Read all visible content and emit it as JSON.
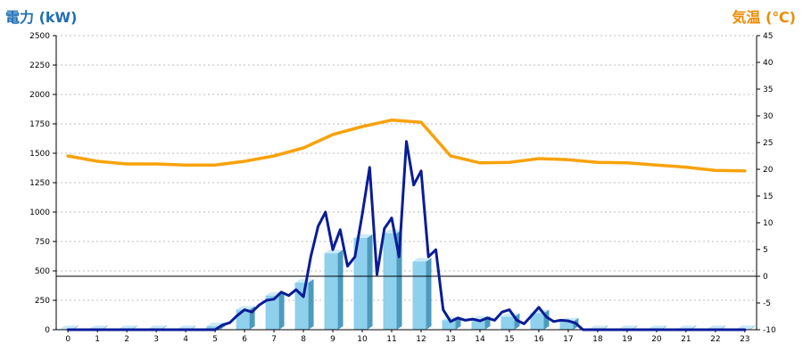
{
  "chart_data": {
    "type": "bar+line",
    "y_left_label": "電力 (kW)",
    "y_right_label": "気温 (℃)",
    "y_left_range": [
      0,
      2500
    ],
    "y_left_ticks": [
      0,
      250,
      500,
      750,
      1000,
      1250,
      1500,
      1750,
      2000,
      2250,
      2500
    ],
    "y_right_range": [
      -10,
      45
    ],
    "y_right_ticks": [
      -10,
      -5,
      0,
      5,
      10,
      15,
      20,
      25,
      30,
      35,
      40,
      45
    ],
    "x_range": [
      -0.4,
      23.4
    ],
    "x_ticks": [
      0,
      1,
      2,
      3,
      4,
      5,
      6,
      7,
      8,
      9,
      10,
      11,
      12,
      13,
      14,
      15,
      16,
      17,
      18,
      19,
      20,
      21,
      22,
      23
    ],
    "grid": true,
    "colors": {
      "left_axis_title": "#1f6fb5",
      "right_axis_title": "#f08a00",
      "bar_front": "#8fd0ec",
      "bar_side": "#4c9bbf",
      "bar_top": "#cbeaf8",
      "power_line": "#0a1c96",
      "temperature_line": "#f8a20a",
      "grid": "#bdbdbd"
    },
    "bars": {
      "categories": [
        0,
        1,
        2,
        3,
        4,
        5,
        6,
        7,
        8,
        9,
        10,
        11,
        12,
        13,
        14,
        15,
        16,
        17,
        18,
        19,
        20,
        21,
        22,
        23
      ],
      "values": [
        5,
        5,
        5,
        5,
        5,
        30,
        170,
        290,
        400,
        650,
        780,
        820,
        580,
        80,
        85,
        110,
        140,
        70,
        5,
        5,
        5,
        5,
        5,
        5
      ]
    },
    "temperature": {
      "x": [
        0,
        1,
        2,
        3,
        4,
        5,
        6,
        7,
        8,
        9,
        10,
        11,
        11.5,
        12,
        13,
        14,
        15,
        16,
        17,
        18,
        19,
        20,
        21,
        22,
        23
      ],
      "y": [
        22.5,
        21.5,
        21,
        21,
        20.8,
        20.8,
        21.5,
        22.5,
        24,
        26.5,
        28,
        29.2,
        29,
        28.8,
        22.5,
        21.2,
        21.3,
        22,
        21.8,
        21.3,
        21.2,
        20.8,
        20.4,
        19.8,
        19.7
      ]
    },
    "power": {
      "x": [
        0,
        1,
        2,
        3,
        4,
        5,
        5.25,
        5.5,
        5.75,
        6,
        6.25,
        6.5,
        6.75,
        7,
        7.25,
        7.5,
        7.75,
        8,
        8.25,
        8.5,
        8.75,
        9,
        9.25,
        9.5,
        9.75,
        10,
        10.25,
        10.5,
        10.75,
        11,
        11.25,
        11.5,
        11.75,
        12,
        12.25,
        12.5,
        12.75,
        13,
        13.25,
        13.5,
        13.75,
        14,
        14.25,
        14.5,
        14.75,
        15,
        15.25,
        15.5,
        15.75,
        16,
        16.25,
        16.5,
        16.75,
        17,
        17.25,
        17.5,
        18,
        19,
        20,
        21,
        22,
        23
      ],
      "y": [
        0,
        0,
        0,
        0,
        0,
        0,
        40,
        60,
        120,
        170,
        150,
        210,
        250,
        260,
        320,
        290,
        340,
        280,
        620,
        880,
        1000,
        680,
        850,
        540,
        620,
        980,
        1380,
        470,
        860,
        950,
        620,
        1600,
        1230,
        1350,
        620,
        680,
        170,
        70,
        100,
        80,
        90,
        75,
        100,
        80,
        150,
        170,
        80,
        50,
        120,
        190,
        110,
        70,
        80,
        75,
        55,
        0,
        0,
        0,
        0,
        0,
        0,
        0
      ]
    }
  }
}
